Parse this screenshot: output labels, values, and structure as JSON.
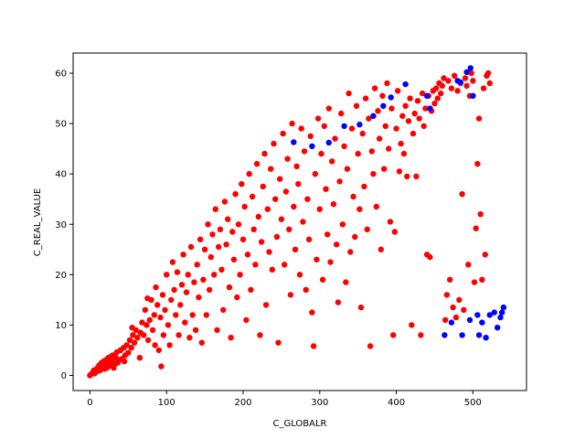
{
  "chart_data": {
    "type": "scatter",
    "title": "",
    "xlabel": "C_GLOBALR",
    "ylabel": "C_REAL_VALUE",
    "xlim": [
      -22,
      570
    ],
    "ylim": [
      -3,
      64
    ],
    "xticks": [
      0,
      100,
      200,
      300,
      400,
      500
    ],
    "yticks": [
      0,
      10,
      20,
      30,
      40,
      50,
      60
    ],
    "grid": false,
    "legend": "none",
    "colors": {
      "red": "#ff0000",
      "blue": "#0000ff"
    },
    "series": [
      {
        "color": "red",
        "points": [
          [
            0,
            0
          ],
          [
            2,
            0.3
          ],
          [
            4,
            0.6
          ],
          [
            5,
            1
          ],
          [
            6,
            0.4
          ],
          [
            8,
            1.2
          ],
          [
            9,
            0.8
          ],
          [
            10,
            1.5
          ],
          [
            12,
            2
          ],
          [
            13,
            1
          ],
          [
            15,
            2.5
          ],
          [
            16,
            1.8
          ],
          [
            18,
            2.8
          ],
          [
            19,
            1.3
          ],
          [
            20,
            3
          ],
          [
            21,
            2.2
          ],
          [
            22,
            1.5
          ],
          [
            24,
            3.5
          ],
          [
            25,
            2.5
          ],
          [
            26,
            1.9
          ],
          [
            28,
            3.8
          ],
          [
            29,
            2.8
          ],
          [
            30,
            4
          ],
          [
            31,
            1.5
          ],
          [
            32,
            2.2
          ],
          [
            34,
            3.5
          ],
          [
            35,
            4.6
          ],
          [
            36,
            2.5
          ],
          [
            38,
            3
          ],
          [
            40,
            5
          ],
          [
            42,
            3.3
          ],
          [
            44,
            5.5
          ],
          [
            45,
            2.8
          ],
          [
            46,
            4
          ],
          [
            48,
            6
          ],
          [
            50,
            4.5
          ],
          [
            52,
            7
          ],
          [
            54,
            5.5
          ],
          [
            55,
            9.5
          ],
          [
            56,
            8
          ],
          [
            58,
            6.5
          ],
          [
            60,
            9
          ],
          [
            62,
            7.5
          ],
          [
            65,
            3.5
          ],
          [
            66,
            8.5
          ],
          [
            68,
            10.5
          ],
          [
            70,
            8
          ],
          [
            72,
            13
          ],
          [
            74,
            10
          ],
          [
            75,
            15.3
          ],
          [
            76,
            7
          ],
          [
            78,
            11
          ],
          [
            80,
            15
          ],
          [
            82,
            9
          ],
          [
            84,
            12
          ],
          [
            85,
            6
          ],
          [
            86,
            17.5
          ],
          [
            88,
            14
          ],
          [
            90,
            5
          ],
          [
            92,
            11.5
          ],
          [
            93,
            1.8
          ],
          [
            95,
            16
          ],
          [
            96,
            8
          ],
          [
            98,
            13
          ],
          [
            100,
            20
          ],
          [
            102,
            10
          ],
          [
            104,
            6
          ],
          [
            106,
            15
          ],
          [
            108,
            22.5
          ],
          [
            110,
            17
          ],
          [
            112,
            12
          ],
          [
            114,
            20.5
          ],
          [
            116,
            8
          ],
          [
            118,
            14
          ],
          [
            120,
            18
          ],
          [
            122,
            24
          ],
          [
            124,
            10.5
          ],
          [
            126,
            16.5
          ],
          [
            128,
            20
          ],
          [
            130,
            7.5
          ],
          [
            132,
            25.5
          ],
          [
            134,
            12
          ],
          [
            136,
            18.5
          ],
          [
            138,
            9
          ],
          [
            140,
            22
          ],
          [
            142,
            15.5
          ],
          [
            144,
            27
          ],
          [
            146,
            6.5
          ],
          [
            148,
            19
          ],
          [
            150,
            25
          ],
          [
            152,
            12
          ],
          [
            154,
            30
          ],
          [
            156,
            17
          ],
          [
            158,
            23.5
          ],
          [
            160,
            28
          ],
          [
            162,
            20
          ],
          [
            164,
            33
          ],
          [
            166,
            9
          ],
          [
            168,
            25.5
          ],
          [
            170,
            29
          ],
          [
            172,
            21
          ],
          [
            174,
            13
          ],
          [
            176,
            34.5
          ],
          [
            178,
            26
          ],
          [
            180,
            31
          ],
          [
            182,
            17.5
          ],
          [
            184,
            7.5
          ],
          [
            186,
            28.5
          ],
          [
            188,
            23
          ],
          [
            190,
            36
          ],
          [
            192,
            15.5
          ],
          [
            194,
            30
          ],
          [
            196,
            20
          ],
          [
            198,
            38
          ],
          [
            200,
            27
          ],
          [
            202,
            33.5
          ],
          [
            204,
            11
          ],
          [
            206,
            24
          ],
          [
            208,
            40
          ],
          [
            210,
            17
          ],
          [
            212,
            35.5
          ],
          [
            214,
            29
          ],
          [
            216,
            22
          ],
          [
            218,
            42
          ],
          [
            220,
            31.5
          ],
          [
            222,
            8
          ],
          [
            224,
            26.5
          ],
          [
            226,
            37.5
          ],
          [
            228,
            44
          ],
          [
            230,
            14
          ],
          [
            232,
            33
          ],
          [
            234,
            24.5
          ],
          [
            236,
            41
          ],
          [
            238,
            21
          ],
          [
            240,
            46
          ],
          [
            242,
            35
          ],
          [
            244,
            27.5
          ],
          [
            246,
            6.5
          ],
          [
            248,
            39
          ],
          [
            250,
            31
          ],
          [
            252,
            48
          ],
          [
            254,
            22
          ],
          [
            256,
            36.5
          ],
          [
            258,
            43
          ],
          [
            260,
            29
          ],
          [
            262,
            16
          ],
          [
            264,
            50
          ],
          [
            266,
            33.5
          ],
          [
            268,
            25
          ],
          [
            270,
            41.5
          ],
          [
            272,
            38
          ],
          [
            274,
            20
          ],
          [
            276,
            49
          ],
          [
            278,
            30.5
          ],
          [
            280,
            44.5
          ],
          [
            282,
            17
          ],
          [
            284,
            35
          ],
          [
            286,
            27
          ],
          [
            288,
            47.5
          ],
          [
            290,
            12.5
          ],
          [
            292,
            5.8
          ],
          [
            294,
            40
          ],
          [
            296,
            23
          ],
          [
            298,
            51
          ],
          [
            300,
            33
          ],
          [
            302,
            44
          ],
          [
            304,
            19
          ],
          [
            306,
            49.5
          ],
          [
            308,
            37
          ],
          [
            310,
            28
          ],
          [
            312,
            53
          ],
          [
            314,
            22.5
          ],
          [
            316,
            42.5
          ],
          [
            318,
            34
          ],
          [
            320,
            47
          ],
          [
            322,
            26
          ],
          [
            324,
            14.5
          ],
          [
            326,
            38.5
          ],
          [
            328,
            52
          ],
          [
            330,
            30
          ],
          [
            332,
            45.5
          ],
          [
            334,
            18.5
          ],
          [
            336,
            41
          ],
          [
            338,
            56
          ],
          [
            340,
            24.5
          ],
          [
            342,
            49
          ],
          [
            344,
            35.5
          ],
          [
            346,
            27.5
          ],
          [
            348,
            53.5
          ],
          [
            350,
            44
          ],
          [
            352,
            33
          ],
          [
            354,
            13.5
          ],
          [
            356,
            48
          ],
          [
            358,
            37.5
          ],
          [
            360,
            55
          ],
          [
            362,
            29
          ],
          [
            364,
            51
          ],
          [
            366,
            5.8
          ],
          [
            368,
            44.5
          ],
          [
            370,
            40
          ],
          [
            372,
            57
          ],
          [
            374,
            33.5
          ],
          [
            376,
            52.5
          ],
          [
            378,
            47
          ],
          [
            380,
            25
          ],
          [
            382,
            55.5
          ],
          [
            384,
            41
          ],
          [
            386,
            49.5
          ],
          [
            388,
            58
          ],
          [
            390,
            45
          ],
          [
            392,
            30.5
          ],
          [
            394,
            53
          ],
          [
            396,
            8
          ],
          [
            398,
            28.5
          ],
          [
            400,
            49
          ],
          [
            402,
            56.5
          ],
          [
            404,
            40.5
          ],
          [
            406,
            46
          ],
          [
            408,
            51.5
          ],
          [
            410,
            44
          ],
          [
            412,
            53.5
          ],
          [
            414,
            39.5
          ],
          [
            416,
            50.5
          ],
          [
            418,
            55
          ],
          [
            420,
            10
          ],
          [
            422,
            48
          ],
          [
            424,
            52
          ],
          [
            426,
            39.5
          ],
          [
            428,
            54.5
          ],
          [
            430,
            51
          ],
          [
            432,
            8
          ],
          [
            434,
            56
          ],
          [
            436,
            49.5
          ],
          [
            438,
            53
          ],
          [
            440,
            24
          ],
          [
            442,
            55.5
          ],
          [
            444,
            23.5
          ],
          [
            446,
            52.5
          ],
          [
            448,
            56.5
          ],
          [
            450,
            54
          ],
          [
            452,
            57
          ],
          [
            454,
            55
          ],
          [
            456,
            58
          ],
          [
            458,
            56
          ],
          [
            460,
            57.5
          ],
          [
            462,
            59
          ],
          [
            464,
            11
          ],
          [
            466,
            16
          ],
          [
            468,
            58.5
          ],
          [
            470,
            19
          ],
          [
            472,
            57
          ],
          [
            474,
            13.5
          ],
          [
            476,
            59.5
          ],
          [
            478,
            11.5
          ],
          [
            480,
            56.5
          ],
          [
            482,
            15
          ],
          [
            484,
            58
          ],
          [
            486,
            36
          ],
          [
            488,
            13
          ],
          [
            490,
            59
          ],
          [
            492,
            57.5
          ],
          [
            494,
            22
          ],
          [
            496,
            55.5
          ],
          [
            498,
            60
          ],
          [
            500,
            58.5
          ],
          [
            502,
            18.5
          ],
          [
            504,
            29.2
          ],
          [
            506,
            42
          ],
          [
            508,
            51
          ],
          [
            510,
            32
          ],
          [
            512,
            19
          ],
          [
            514,
            57
          ],
          [
            516,
            24
          ],
          [
            518,
            59.5
          ],
          [
            520,
            60
          ],
          [
            522,
            58
          ]
        ]
      },
      {
        "color": "blue",
        "points": [
          [
            266,
            46.3
          ],
          [
            290,
            45.5
          ],
          [
            312,
            46.2
          ],
          [
            332,
            49.5
          ],
          [
            352,
            49.8
          ],
          [
            370,
            51.5
          ],
          [
            383,
            53.5
          ],
          [
            393,
            55.2
          ],
          [
            412,
            57.8
          ],
          [
            440,
            55.5
          ],
          [
            463,
            8
          ],
          [
            472,
            10.5
          ],
          [
            480,
            58.5
          ],
          [
            484,
            58.2
          ],
          [
            492,
            60.2
          ],
          [
            497,
            61
          ],
          [
            486,
            8
          ],
          [
            496,
            11
          ],
          [
            508,
            8
          ],
          [
            512,
            10.5
          ],
          [
            517,
            7.5
          ],
          [
            522,
            12
          ],
          [
            528,
            12.5
          ],
          [
            532,
            9.5
          ],
          [
            536,
            11.5
          ],
          [
            538,
            12.5
          ],
          [
            540,
            13.5
          ],
          [
            444,
            53
          ],
          [
            500,
            55.5
          ],
          [
            506,
            12
          ]
        ]
      }
    ]
  }
}
